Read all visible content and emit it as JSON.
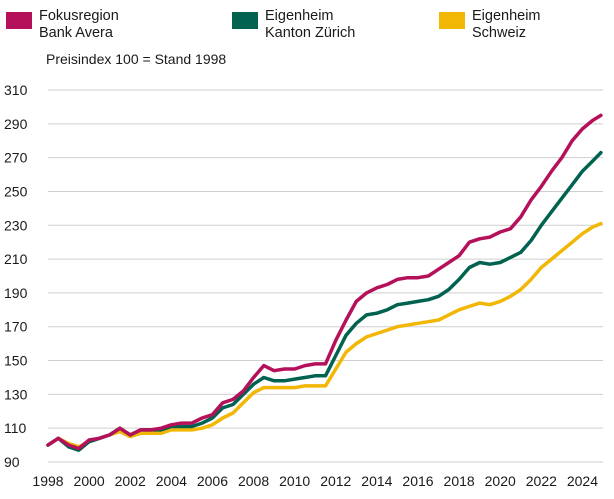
{
  "legend": [
    {
      "label": "Fokusregion\nBank Avera",
      "color": "#b5105a"
    },
    {
      "label": "Eigenheim\nKanton Zürich",
      "color": "#00624f"
    },
    {
      "label": "Eigenheim\nSchweiz",
      "color": "#f2b705"
    }
  ],
  "subtitle": "Preisindex 100 = Stand 1998",
  "chart_data": {
    "type": "line",
    "title": "",
    "subtitle": "Preisindex 100 = Stand 1998",
    "xlabel": "",
    "ylabel": "",
    "xlim": [
      1998,
      2025
    ],
    "ylim": [
      90,
      310
    ],
    "grid": "horizontal",
    "y_ticks": [
      90,
      110,
      130,
      150,
      170,
      190,
      210,
      230,
      250,
      270,
      290,
      310
    ],
    "x_ticks": [
      1998,
      2000,
      2002,
      2004,
      2006,
      2008,
      2010,
      2012,
      2014,
      2016,
      2018,
      2020,
      2022,
      2024
    ],
    "series": [
      {
        "name": "Fokusregion Bank Avera",
        "color": "#b5105a",
        "x": [
          1998,
          1998.5,
          1999,
          1999.5,
          2000,
          2000.5,
          2001,
          2001.5,
          2002,
          2002.5,
          2003,
          2003.5,
          2004,
          2004.5,
          2005,
          2005.5,
          2006,
          2006.5,
          2007,
          2007.5,
          2008,
          2008.5,
          2009,
          2009.5,
          2010,
          2010.5,
          2011,
          2011.5,
          2012,
          2012.5,
          2013,
          2013.5,
          2014,
          2014.5,
          2015,
          2015.5,
          2016,
          2016.5,
          2017,
          2017.5,
          2018,
          2018.5,
          2019,
          2019.5,
          2020,
          2020.5,
          2021,
          2021.5,
          2022,
          2022.5,
          2023,
          2023.5,
          2024,
          2024.5,
          2024.9
        ],
        "values": [
          100,
          104,
          100,
          98,
          103,
          104,
          106,
          110,
          106,
          109,
          109,
          110,
          112,
          113,
          113,
          116,
          118,
          125,
          127,
          132,
          140,
          147,
          144,
          145,
          145,
          147,
          148,
          148,
          162,
          174,
          185,
          190,
          193,
          195,
          198,
          199,
          199,
          200,
          204,
          208,
          212,
          220,
          222,
          223,
          226,
          228,
          235,
          245,
          253,
          262,
          270,
          280,
          287,
          292,
          295
        ]
      },
      {
        "name": "Eigenheim Kanton Zürich",
        "color": "#00624f",
        "x": [
          1998,
          1998.5,
          1999,
          1999.5,
          2000,
          2000.5,
          2001,
          2001.5,
          2002,
          2002.5,
          2003,
          2003.5,
          2004,
          2004.5,
          2005,
          2005.5,
          2006,
          2006.5,
          2007,
          2007.5,
          2008,
          2008.5,
          2009,
          2009.5,
          2010,
          2010.5,
          2011,
          2011.5,
          2012,
          2012.5,
          2013,
          2013.5,
          2014,
          2014.5,
          2015,
          2015.5,
          2016,
          2016.5,
          2017,
          2017.5,
          2018,
          2018.5,
          2019,
          2019.5,
          2020,
          2020.5,
          2021,
          2021.5,
          2022,
          2022.5,
          2023,
          2023.5,
          2024,
          2024.5,
          2024.9
        ],
        "values": [
          100,
          104,
          99,
          97,
          102,
          104,
          106,
          110,
          106,
          109,
          109,
          109,
          111,
          111,
          111,
          113,
          116,
          122,
          124,
          130,
          136,
          140,
          138,
          138,
          139,
          140,
          141,
          141,
          153,
          165,
          172,
          177,
          178,
          180,
          183,
          184,
          185,
          186,
          188,
          192,
          198,
          205,
          208,
          207,
          208,
          211,
          214,
          221,
          230,
          238,
          246,
          254,
          262,
          268,
          273
        ]
      },
      {
        "name": "Eigenheim Schweiz",
        "color": "#f2b705",
        "x": [
          1998,
          1998.5,
          1999,
          1999.5,
          2000,
          2000.5,
          2001,
          2001.5,
          2002,
          2002.5,
          2003,
          2003.5,
          2004,
          2004.5,
          2005,
          2005.5,
          2006,
          2006.5,
          2007,
          2007.5,
          2008,
          2008.5,
          2009,
          2009.5,
          2010,
          2010.5,
          2011,
          2011.5,
          2012,
          2012.5,
          2013,
          2013.5,
          2014,
          2014.5,
          2015,
          2015.5,
          2016,
          2016.5,
          2017,
          2017.5,
          2018,
          2018.5,
          2019,
          2019.5,
          2020,
          2020.5,
          2021,
          2021.5,
          2022,
          2022.5,
          2023,
          2023.5,
          2024,
          2024.5,
          2024.9
        ],
        "values": [
          100,
          104,
          101,
          99,
          102,
          104,
          106,
          108,
          105,
          107,
          107,
          107,
          109,
          109,
          109,
          110,
          112,
          116,
          119,
          125,
          131,
          134,
          134,
          134,
          134,
          135,
          135,
          135,
          145,
          155,
          160,
          164,
          166,
          168,
          170,
          171,
          172,
          173,
          174,
          177,
          180,
          182,
          184,
          183,
          185,
          188,
          192,
          198,
          205,
          210,
          215,
          220,
          225,
          229,
          231
        ]
      }
    ]
  }
}
